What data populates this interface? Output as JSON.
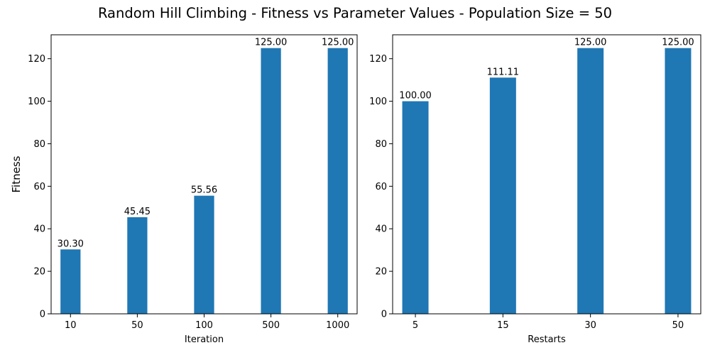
{
  "figure": {
    "title": "Random Hill Climbing - Fitness vs Parameter Values - Population Size = 50"
  },
  "colors": {
    "bar": "#1f77b4",
    "axis": "#000000"
  },
  "chart_data": [
    {
      "type": "bar",
      "categories": [
        "10",
        "50",
        "100",
        "500",
        "1000"
      ],
      "values": [
        30.3,
        45.45,
        55.56,
        125.0,
        125.0
      ],
      "data_labels": [
        "30.30",
        "45.45",
        "55.56",
        "125.00",
        "125.00"
      ],
      "xlabel": "Iteration",
      "ylabel": "Fitness",
      "ylim": [
        0,
        131.25
      ],
      "yticks": [
        0,
        20,
        40,
        60,
        80,
        100,
        120
      ],
      "grid": false
    },
    {
      "type": "bar",
      "categories": [
        "5",
        "15",
        "30",
        "50"
      ],
      "values": [
        100.0,
        111.11,
        125.0,
        125.0
      ],
      "data_labels": [
        "100.00",
        "111.11",
        "125.00",
        "125.00"
      ],
      "xlabel": "Restarts",
      "ylabel": "",
      "ylim": [
        0,
        131.25
      ],
      "yticks": [
        0,
        20,
        40,
        60,
        80,
        100,
        120
      ],
      "grid": false
    }
  ]
}
